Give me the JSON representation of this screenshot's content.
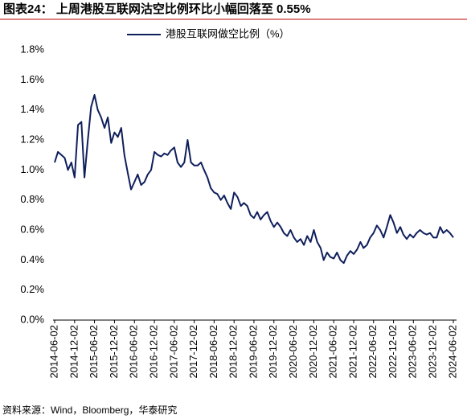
{
  "chart_data": {
    "type": "line",
    "title": "图表24：  上周港股互联网沽空比例环比小幅回落至 0.55%",
    "source": "资料来源：Wind，Bloomberg，华泰研究",
    "x": [
      "2014-06-02",
      "2014-07-02",
      "2014-08-02",
      "2014-09-02",
      "2014-10-02",
      "2014-11-02",
      "2014-12-02",
      "2015-01-02",
      "2015-02-02",
      "2015-03-02",
      "2015-04-02",
      "2015-05-02",
      "2015-06-02",
      "2015-07-02",
      "2015-08-02",
      "2015-09-02",
      "2015-10-02",
      "2015-11-02",
      "2015-12-02",
      "2016-01-02",
      "2016-02-02",
      "2016-03-02",
      "2016-04-02",
      "2016-05-02",
      "2016-06-02",
      "2016-07-02",
      "2016-08-02",
      "2016-09-02",
      "2016-10-02",
      "2016-11-02",
      "2016-12-02",
      "2017-01-02",
      "2017-02-02",
      "2017-03-02",
      "2017-04-02",
      "2017-05-02",
      "2017-06-02",
      "2017-07-02",
      "2017-08-02",
      "2017-09-02",
      "2017-10-02",
      "2017-11-02",
      "2017-12-02",
      "2018-01-02",
      "2018-02-02",
      "2018-03-02",
      "2018-04-02",
      "2018-05-02",
      "2018-06-02",
      "2018-07-02",
      "2018-08-02",
      "2018-09-02",
      "2018-10-02",
      "2018-11-02",
      "2018-12-02",
      "2019-01-02",
      "2019-02-02",
      "2019-03-02",
      "2019-04-02",
      "2019-05-02",
      "2019-06-02",
      "2019-07-02",
      "2019-08-02",
      "2019-09-02",
      "2019-10-02",
      "2019-11-02",
      "2019-12-02",
      "2020-01-02",
      "2020-02-02",
      "2020-03-02",
      "2020-04-02",
      "2020-05-02",
      "2020-06-02",
      "2020-07-02",
      "2020-08-02",
      "2020-09-02",
      "2020-10-02",
      "2020-11-02",
      "2020-12-02",
      "2021-01-02",
      "2021-02-02",
      "2021-03-02",
      "2021-04-02",
      "2021-05-02",
      "2021-06-02",
      "2021-07-02",
      "2021-08-02",
      "2021-09-02",
      "2021-10-02",
      "2021-11-02",
      "2021-12-02",
      "2022-01-02",
      "2022-02-02",
      "2022-03-02",
      "2022-04-02",
      "2022-05-02",
      "2022-06-02",
      "2022-07-02",
      "2022-08-02",
      "2022-09-02",
      "2022-10-02",
      "2022-11-02",
      "2022-12-02",
      "2023-01-02",
      "2023-02-02",
      "2023-03-02",
      "2023-04-02",
      "2023-05-02",
      "2023-06-02",
      "2023-07-02",
      "2023-08-02",
      "2023-09-02",
      "2023-10-02",
      "2023-11-02",
      "2023-12-02",
      "2024-01-02",
      "2024-02-02",
      "2024-03-02",
      "2024-04-02",
      "2024-05-02",
      "2024-06-02"
    ],
    "series": [
      {
        "name": "港股互联网做空比例（%）",
        "color": "#0f1f5c",
        "values": [
          1.05,
          1.12,
          1.1,
          1.08,
          1.0,
          1.05,
          0.95,
          1.3,
          1.32,
          0.95,
          1.2,
          1.42,
          1.5,
          1.4,
          1.35,
          1.28,
          1.35,
          1.18,
          1.25,
          1.22,
          1.28,
          1.1,
          0.98,
          0.87,
          0.92,
          0.97,
          0.9,
          0.92,
          0.97,
          1.0,
          1.12,
          1.1,
          1.09,
          1.11,
          1.1,
          1.13,
          1.15,
          1.05,
          1.02,
          1.05,
          1.2,
          1.05,
          1.03,
          1.03,
          1.05,
          1.0,
          0.95,
          0.88,
          0.85,
          0.84,
          0.8,
          0.83,
          0.78,
          0.74,
          0.85,
          0.82,
          0.76,
          0.78,
          0.76,
          0.7,
          0.68,
          0.72,
          0.67,
          0.7,
          0.72,
          0.66,
          0.62,
          0.65,
          0.62,
          0.58,
          0.56,
          0.6,
          0.55,
          0.52,
          0.54,
          0.5,
          0.56,
          0.52,
          0.6,
          0.52,
          0.48,
          0.4,
          0.45,
          0.42,
          0.41,
          0.45,
          0.4,
          0.38,
          0.43,
          0.46,
          0.44,
          0.47,
          0.52,
          0.48,
          0.5,
          0.55,
          0.58,
          0.63,
          0.6,
          0.55,
          0.62,
          0.7,
          0.65,
          0.58,
          0.62,
          0.57,
          0.54,
          0.57,
          0.55,
          0.58,
          0.6,
          0.58,
          0.57,
          0.58,
          0.55,
          0.55,
          0.62,
          0.58,
          0.6,
          0.58,
          0.55
        ]
      }
    ],
    "xlim": [
      "2014-06-02",
      "2024-06-02"
    ],
    "xticks": [
      "2014-06-02",
      "2014-12-02",
      "2015-06-02",
      "2015-12-02",
      "2016-06-02",
      "2016-12-02",
      "2017-06-02",
      "2017-12-02",
      "2018-06-02",
      "2018-12-02",
      "2019-06-02",
      "2019-12-02",
      "2020-06-02",
      "2020-12-02",
      "2021-06-02",
      "2021-12-02",
      "2022-06-02",
      "2022-12-02",
      "2023-06-02",
      "2023-12-02",
      "2024-06-02"
    ],
    "ylim": [
      0,
      1.8
    ],
    "yticks": [
      {
        "value": 0,
        "label": "0.0%"
      },
      {
        "value": 0.2,
        "label": "0.2%"
      },
      {
        "value": 0.4,
        "label": "0.4%"
      },
      {
        "value": 0.6,
        "label": "0.6%"
      },
      {
        "value": 0.8,
        "label": "0.8%"
      },
      {
        "value": 1.0,
        "label": "1.0%"
      },
      {
        "value": 1.2,
        "label": "1.2%"
      },
      {
        "value": 1.4,
        "label": "1.4%"
      },
      {
        "value": 1.6,
        "label": "1.6%"
      },
      {
        "value": 1.8,
        "label": "1.8%"
      }
    ],
    "legend": "top"
  }
}
